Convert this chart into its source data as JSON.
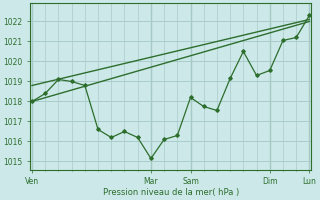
{
  "xlabel": "Pression niveau de la mer( hPa )",
  "bg_color": "#cce8e8",
  "grid_color": "#aacccc",
  "line_color": "#2d6e2d",
  "ylim": [
    1014.6,
    1022.9
  ],
  "xlim": [
    -1,
    169
  ],
  "yticks": [
    1015,
    1016,
    1017,
    1018,
    1019,
    1020,
    1021,
    1022
  ],
  "day_labels": [
    "Ven",
    "Mar",
    "Sam",
    "Dim",
    "Lun"
  ],
  "day_positions": [
    0,
    72,
    96,
    144,
    168
  ],
  "minor_x_step": 8,
  "line1_x": [
    0,
    8,
    16,
    24,
    32,
    40,
    48,
    56,
    64,
    72,
    80,
    88,
    96,
    104,
    112,
    120,
    128,
    136,
    144,
    152,
    160,
    168
  ],
  "line1_y": [
    1018.0,
    1018.4,
    1019.1,
    1019.0,
    1018.8,
    1016.6,
    1016.2,
    1016.5,
    1016.2,
    1015.15,
    1016.1,
    1016.3,
    1018.2,
    1017.75,
    1017.55,
    1019.15,
    1020.5,
    1019.3,
    1019.55,
    1021.05,
    1021.2,
    1022.3
  ],
  "line2_x": [
    0,
    168
  ],
  "line2_y": [
    1018.8,
    1022.1
  ],
  "line3_x": [
    0,
    168
  ],
  "line3_y": [
    1018.0,
    1022.0
  ],
  "line1_markers_x": [
    0,
    8,
    16,
    24,
    32,
    40,
    48,
    56,
    64,
    72,
    80,
    88,
    96,
    104,
    112,
    120,
    128,
    136,
    144,
    152,
    160,
    168
  ],
  "line1_markers_y": [
    1018.0,
    1018.4,
    1019.1,
    1019.0,
    1018.8,
    1016.6,
    1016.2,
    1016.5,
    1016.2,
    1015.15,
    1016.1,
    1016.3,
    1018.2,
    1017.75,
    1017.55,
    1019.15,
    1020.5,
    1019.3,
    1019.55,
    1021.05,
    1021.2,
    1022.3
  ]
}
